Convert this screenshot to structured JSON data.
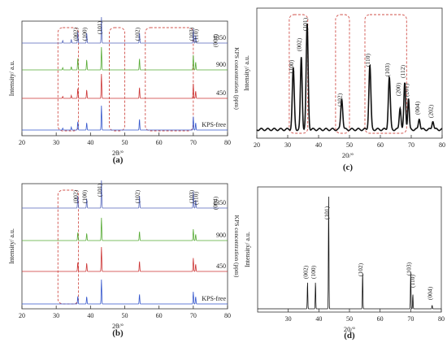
{
  "chart_data": [
    {
      "id": "a",
      "panel_label": "(a)",
      "type": "line",
      "title": "",
      "xlabel": "2θ/°",
      "ylabel": "Intensity/ a.u.",
      "right_label": "KPS concentration (ppm)",
      "xlim": [
        20,
        80
      ],
      "xticks": [
        20,
        30,
        40,
        50,
        60,
        70,
        80
      ],
      "grid": false,
      "series": [
        {
          "name": "KPS-free",
          "color": "#3355cc",
          "peaks": [
            [
              31.9,
              0.08
            ],
            [
              34.4,
              0.12
            ],
            [
              36.3,
              0.35
            ],
            [
              38.9,
              0.3
            ],
            [
              43.2,
              1.0
            ],
            [
              54.3,
              0.45
            ],
            [
              70.0,
              0.55
            ],
            [
              70.7,
              0.3
            ]
          ]
        },
        {
          "name": "450",
          "color": "#cc3333",
          "peaks": [
            [
              31.9,
              0.08
            ],
            [
              34.4,
              0.12
            ],
            [
              36.3,
              0.42
            ],
            [
              38.9,
              0.35
            ],
            [
              43.2,
              1.0
            ],
            [
              54.3,
              0.45
            ],
            [
              70.0,
              0.6
            ],
            [
              70.7,
              0.3
            ]
          ]
        },
        {
          "name": "900",
          "color": "#55aa33",
          "peaks": [
            [
              31.9,
              0.1
            ],
            [
              34.4,
              0.14
            ],
            [
              36.3,
              0.52
            ],
            [
              38.9,
              0.45
            ],
            [
              43.2,
              1.0
            ],
            [
              54.3,
              0.5
            ],
            [
              70.0,
              0.65
            ],
            [
              70.7,
              0.35
            ]
          ]
        },
        {
          "name": "1350",
          "color": "#5566bb",
          "peaks": [
            [
              31.9,
              0.1
            ],
            [
              34.4,
              0.14
            ],
            [
              36.3,
              0.45
            ],
            [
              38.9,
              0.4
            ],
            [
              43.2,
              1.0
            ],
            [
              54.3,
              0.4
            ],
            [
              70.0,
              0.55
            ],
            [
              70.7,
              0.3
            ]
          ]
        }
      ],
      "annotations": [
        {
          "text": "(002)",
          "x": 36.3
        },
        {
          "text": "(100)",
          "x": 38.9
        },
        {
          "text": "(101)",
          "x": 43.2
        },
        {
          "text": "(102)",
          "x": 54.3
        },
        {
          "text": "(103)",
          "x": 70.0
        },
        {
          "text": "(110)",
          "x": 71.3
        },
        {
          "text": "(004)",
          "x": 77.0
        }
      ],
      "dashed_regions": [
        [
          30.5,
          36.5
        ],
        [
          45.5,
          50.0
        ],
        [
          56.0,
          70.0
        ]
      ]
    },
    {
      "id": "b",
      "panel_label": "(b)",
      "type": "line",
      "title": "",
      "xlabel": "2θ/°",
      "ylabel": "Intensity/ a.u.",
      "right_label": "KPS concentration (ppm)",
      "xlim": [
        20,
        80
      ],
      "xticks": [
        20,
        30,
        40,
        50,
        60,
        70,
        80
      ],
      "grid": false,
      "series": [
        {
          "name": "KPS-free",
          "color": "#3355cc",
          "peaks": [
            [
              36.3,
              0.32
            ],
            [
              38.9,
              0.3
            ],
            [
              43.2,
              1.0
            ],
            [
              54.3,
              0.4
            ],
            [
              70.0,
              0.5
            ],
            [
              70.7,
              0.3
            ]
          ]
        },
        {
          "name": "450",
          "color": "#cc3333",
          "peaks": [
            [
              36.3,
              0.38
            ],
            [
              38.9,
              0.34
            ],
            [
              43.2,
              1.0
            ],
            [
              54.3,
              0.42
            ],
            [
              70.0,
              0.55
            ],
            [
              70.7,
              0.3
            ]
          ]
        },
        {
          "name": "900",
          "color": "#55aa33",
          "peaks": [
            [
              36.3,
              0.36
            ],
            [
              38.9,
              0.32
            ],
            [
              43.2,
              1.0
            ],
            [
              54.3,
              0.4
            ],
            [
              70.0,
              0.5
            ],
            [
              70.7,
              0.28
            ]
          ]
        },
        {
          "name": "1350",
          "color": "#5566bb",
          "peaks": [
            [
              36.3,
              0.45
            ],
            [
              38.9,
              0.35
            ],
            [
              43.2,
              1.0
            ],
            [
              54.3,
              0.45
            ],
            [
              70.0,
              0.6
            ],
            [
              70.7,
              0.3
            ]
          ]
        }
      ],
      "annotations": [
        {
          "text": "(002)",
          "x": 36.3
        },
        {
          "text": "(100)",
          "x": 38.9
        },
        {
          "text": "(101)",
          "x": 43.2
        },
        {
          "text": "(102)",
          "x": 54.3
        },
        {
          "text": "(103)",
          "x": 70.0
        },
        {
          "text": "(110)",
          "x": 71.3
        },
        {
          "text": "(004)",
          "x": 77.0
        }
      ],
      "dashed_regions": [
        [
          30.5,
          36.5
        ]
      ]
    },
    {
      "id": "c",
      "panel_label": "(c)",
      "type": "line",
      "title": "",
      "xlabel": "20/°",
      "ylabel": "Intensity/ a.u.",
      "xlim": [
        20,
        80
      ],
      "xticks": [
        20,
        30,
        40,
        50,
        60,
        70,
        80
      ],
      "grid": false,
      "series": [
        {
          "color": "#111111",
          "peaks": [
            [
              31.8,
              0.55,
              0.45
            ],
            [
              34.4,
              0.65,
              0.4
            ],
            [
              36.3,
              0.95,
              0.45
            ],
            [
              47.5,
              0.28,
              0.45
            ],
            [
              56.6,
              0.58,
              0.45
            ],
            [
              62.9,
              0.47,
              0.45
            ],
            [
              66.4,
              0.2,
              0.4
            ],
            [
              67.9,
              0.42,
              0.4
            ],
            [
              69.1,
              0.28,
              0.35
            ],
            [
              72.6,
              0.1,
              0.4
            ],
            [
              77.0,
              0.08,
              0.4
            ]
          ]
        }
      ],
      "annotations": [
        {
          "text": "(100)",
          "x": 31.8
        },
        {
          "text": "(002)",
          "x": 34.4
        },
        {
          "text": "(101)",
          "x": 36.3
        },
        {
          "text": "(102)",
          "x": 47.5
        },
        {
          "text": "(110)",
          "x": 56.6
        },
        {
          "text": "(103)",
          "x": 62.9
        },
        {
          "text": "(200)",
          "x": 66.4
        },
        {
          "text": "(112)",
          "x": 67.9
        },
        {
          "text": "(201)",
          "x": 69.1
        },
        {
          "text": "(004)",
          "x": 72.6
        },
        {
          "text": "(202)",
          "x": 77.0
        }
      ],
      "dashed_regions": [
        [
          30.5,
          36.5
        ],
        [
          45.5,
          50.0
        ],
        [
          55.0,
          68.5
        ]
      ]
    },
    {
      "id": "d",
      "panel_label": "(d)",
      "type": "line",
      "title": "",
      "xlabel": "20/°",
      "ylabel": "Intensity/ a.u.",
      "xlim": [
        20,
        80
      ],
      "xticks": [
        30,
        40,
        50,
        60,
        70,
        80
      ],
      "grid": false,
      "series": [
        {
          "color": "#111111",
          "peaks": [
            [
              36.3,
              0.22
            ],
            [
              38.9,
              0.22
            ],
            [
              43.2,
              0.92
            ],
            [
              54.3,
              0.3
            ],
            [
              70.0,
              0.3
            ],
            [
              70.7,
              0.12
            ],
            [
              77.0,
              0.03
            ]
          ]
        }
      ],
      "annotations": [
        {
          "text": "(002)",
          "x": 36.3
        },
        {
          "text": "(100)",
          "x": 38.9
        },
        {
          "text": "(101)",
          "x": 43.2
        },
        {
          "text": "(102)",
          "x": 54.3
        },
        {
          "text": "(103)",
          "x": 70.0
        },
        {
          "text": "(110)",
          "x": 71.3
        },
        {
          "text": "(004)",
          "x": 77.0
        }
      ]
    }
  ]
}
